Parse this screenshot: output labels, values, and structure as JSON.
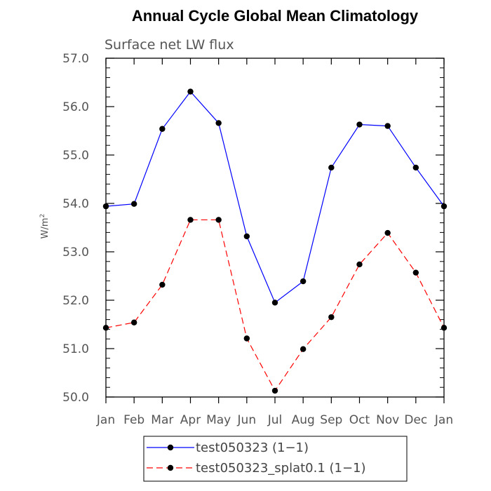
{
  "chart_data": {
    "type": "line",
    "title": "Annual Cycle Global Mean Climatology",
    "subtitle": "Surface net LW flux",
    "ylabel": "W/m",
    "ylabel_sup": "2",
    "categories": [
      "Jan",
      "Feb",
      "Mar",
      "Apr",
      "May",
      "Jun",
      "Jul",
      "Aug",
      "Sep",
      "Oct",
      "Nov",
      "Dec",
      "Jan"
    ],
    "ylim": [
      50.0,
      57.0
    ],
    "yticks": [
      "50.0",
      "51.0",
      "52.0",
      "53.0",
      "54.0",
      "55.0",
      "56.0",
      "57.0"
    ],
    "grid": false,
    "legend_position": "bottom",
    "series": [
      {
        "name": "test050323 (1−1)",
        "color": "#0000ff",
        "dash": "solid",
        "values": [
          53.94,
          53.99,
          55.54,
          56.31,
          55.66,
          53.32,
          51.95,
          52.39,
          54.74,
          55.63,
          55.6,
          54.74,
          53.94
        ]
      },
      {
        "name": "test050323_splat0.1 (1−1)",
        "color": "#ff0000",
        "dash": "dashed",
        "values": [
          51.43,
          51.54,
          52.32,
          53.66,
          53.66,
          51.21,
          50.13,
          50.99,
          51.65,
          52.74,
          53.39,
          52.57,
          51.43
        ]
      }
    ]
  }
}
